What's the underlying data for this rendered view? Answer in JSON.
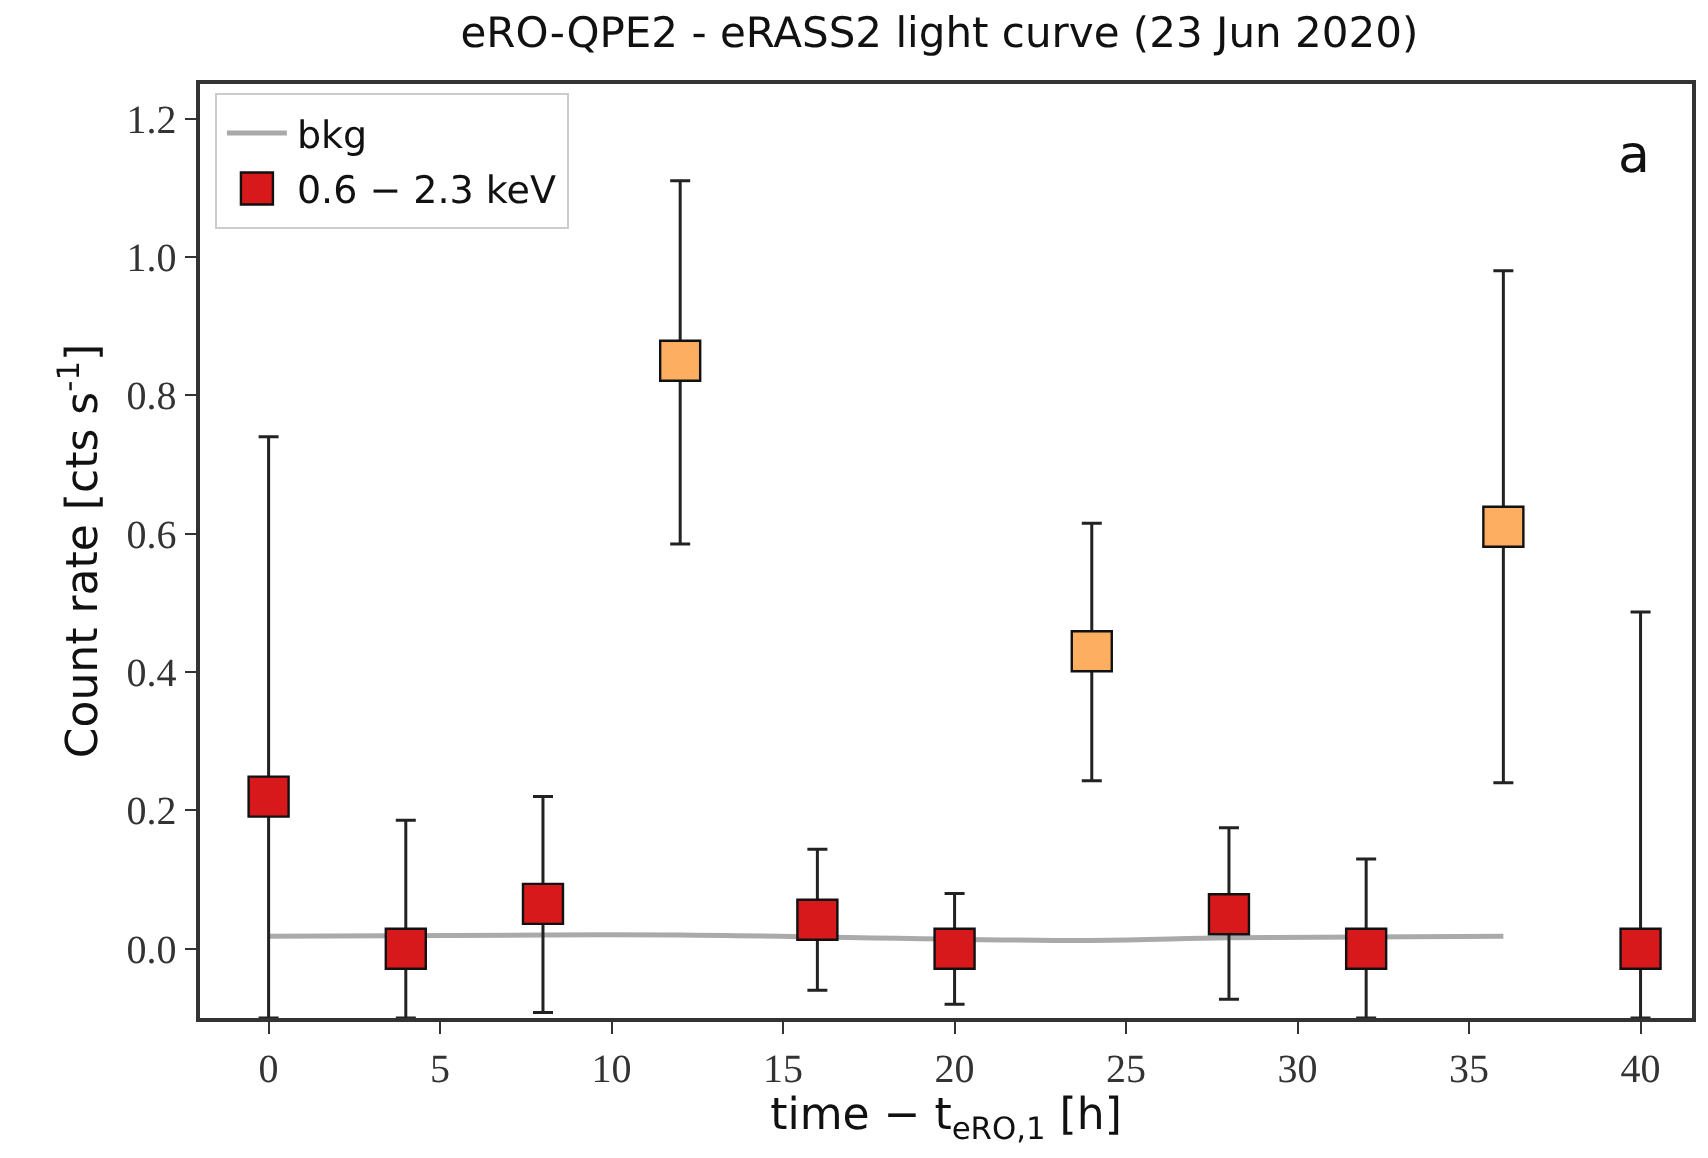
{
  "chart_data": {
    "type": "scatter",
    "title": "eRO-QPE2 - eRASS2 light curve (23 Jun 2020)",
    "xlabel": "time − t$_{eRO,1}$ [h]",
    "ylabel": "Count rate [cts s$^{-1}$]",
    "annotations": [
      "a"
    ],
    "x": [
      0,
      4,
      8,
      12,
      16,
      20,
      24,
      28,
      32,
      36,
      40
    ],
    "series": [
      {
        "name": "bkg",
        "type": "line",
        "color": "#aaaaaa",
        "marker": "none",
        "line_style": "solid",
        "values": [
          0.018,
          null,
          0.02,
          0.02,
          null,
          null,
          0.012,
          0.016,
          null,
          0.018,
          null
        ]
      },
      {
        "name": "0.6 − 2.3 keV",
        "color": "#d7191c",
        "marker": "square",
        "colors": [
          "#d7191c",
          "#d7191c",
          "#d7191c",
          "#fdae61",
          "#d7191c",
          "#d7191c",
          "#fdae61",
          "#d7191c",
          "#d7191c",
          "#fdae61",
          "#d7191c"
        ],
        "values": [
          0.22,
          0.0,
          0.065,
          0.85,
          0.042,
          0.0,
          0.43,
          0.05,
          0.0,
          0.61,
          0.0
        ],
        "errors": [
          [
            -0.1,
            0.74
          ],
          [
            -0.1,
            0.186
          ],
          [
            -0.092,
            0.22
          ],
          [
            0.585,
            1.11
          ],
          [
            -0.06,
            0.144
          ],
          [
            -0.08,
            0.08
          ],
          [
            0.243,
            0.615
          ],
          [
            -0.073,
            0.175
          ],
          [
            -0.1,
            0.13
          ],
          [
            0.24,
            0.98
          ],
          [
            -0.1,
            0.487
          ]
        ]
      }
    ],
    "xlim": [
      -2,
      41.5
    ],
    "xticks": [
      0,
      5,
      10,
      15,
      20,
      25,
      30,
      35,
      40
    ],
    "ylim": [
      -0.1,
      1.25
    ],
    "yticks": [
      {
        "value": 0,
        "label": "0.0"
      },
      0.2,
      0.4,
      0.6,
      0.8,
      {
        "value": 1,
        "label": "1.0"
      },
      1.2
    ],
    "grid": false,
    "legend": "top left"
  }
}
